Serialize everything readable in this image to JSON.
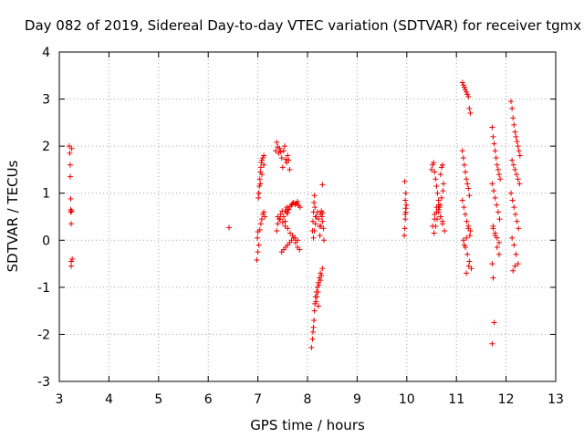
{
  "chart_data": {
    "type": "scatter",
    "title": "Day 082 of 2019, Sidereal Day-to-day VTEC variation (SDTVAR) for receiver tgmx",
    "xlabel": "GPS time / hours",
    "ylabel": "SDTVAR / TECUs",
    "xlim": [
      3,
      13
    ],
    "ylim": [
      -3,
      4
    ],
    "xticks": [
      "3",
      "4",
      "5",
      "6",
      "7",
      "8",
      "9",
      "10",
      "11",
      "12",
      "13"
    ],
    "yticks": [
      "-3",
      "-2",
      "-1",
      "0",
      "1",
      "2",
      "3",
      "4"
    ],
    "grid": true,
    "marker": "+",
    "color": "#ee0000",
    "series": [
      {
        "name": "SDTVAR",
        "x": [
          3.2,
          3.21,
          3.22,
          3.22,
          3.23,
          3.23,
          3.23,
          3.24,
          3.24,
          3.24,
          3.25,
          3.25,
          3.26,
          6.42,
          6.98,
          6.99,
          7.0,
          7.01,
          7.02,
          7.03,
          7.04,
          7.05,
          7.06,
          7.07,
          7.08,
          7.1,
          7.12,
          7.0,
          7.02,
          7.04,
          7.06,
          7.08,
          7.1,
          7.12,
          7.14,
          7.02,
          7.05,
          7.08,
          7.12,
          7.36,
          7.38,
          7.4,
          7.42,
          7.44,
          7.46,
          7.48,
          7.5,
          7.52,
          7.54,
          7.56,
          7.58,
          7.6,
          7.62,
          7.64,
          7.38,
          7.4,
          7.43,
          7.46,
          7.49,
          7.52,
          7.55,
          7.58,
          7.61,
          7.55,
          7.58,
          7.6,
          7.62,
          7.65,
          7.68,
          7.7,
          7.72,
          7.75,
          7.78,
          7.8,
          7.82,
          7.85,
          7.48,
          7.52,
          7.56,
          7.6,
          7.64,
          7.68,
          7.72,
          7.76,
          7.8,
          7.84,
          7.4,
          7.45,
          7.5,
          7.55,
          7.6,
          7.65,
          7.7,
          7.75,
          7.8,
          8.08,
          8.1,
          8.11,
          8.12,
          8.13,
          8.14,
          8.15,
          8.16,
          8.18,
          8.2,
          8.22,
          8.24,
          8.26,
          8.28,
          8.3,
          8.12,
          8.14,
          8.16,
          8.18,
          8.2,
          8.22,
          8.24,
          8.26,
          8.28,
          8.3,
          8.32,
          8.1,
          8.11,
          8.12,
          8.13,
          8.14,
          8.15,
          8.16,
          8.17,
          8.19,
          8.21,
          8.23,
          8.25,
          8.27,
          8.29,
          8.31,
          8.22,
          8.26,
          8.3,
          8.33,
          9.95,
          9.96,
          9.97,
          9.98,
          9.99,
          9.97,
          9.98,
          9.96,
          9.97,
          9.98,
          10.5,
          10.52,
          10.54,
          10.56,
          10.58,
          10.6,
          10.62,
          10.64,
          10.66,
          10.68,
          10.7,
          10.72,
          10.74,
          10.55,
          10.58,
          10.61,
          10.64,
          10.67,
          10.7,
          10.73,
          10.52,
          10.56,
          10.6,
          10.64,
          10.68,
          10.72,
          10.76,
          10.56,
          10.6,
          10.64,
          10.68,
          10.72,
          11.12,
          11.14,
          11.16,
          11.18,
          11.2,
          11.22,
          11.24,
          11.26,
          11.28,
          11.12,
          11.14,
          11.16,
          11.18,
          11.2,
          11.22,
          11.24,
          11.26,
          11.12,
          11.15,
          11.18,
          11.21,
          11.24,
          11.27,
          11.14,
          11.18,
          11.22,
          11.26,
          11.3,
          11.16,
          11.2,
          11.24,
          11.28,
          11.2,
          11.25,
          11.72,
          11.74,
          11.76,
          11.78,
          11.8,
          11.82,
          11.84,
          11.86,
          11.88,
          11.72,
          11.75,
          11.78,
          11.81,
          11.84,
          11.87,
          11.74,
          11.78,
          11.82,
          11.86,
          11.72,
          11.74,
          11.76,
          11.72,
          11.74,
          11.78,
          11.82,
          11.86,
          12.1,
          12.12,
          12.14,
          12.16,
          12.18,
          12.2,
          12.22,
          12.24,
          12.26,
          12.28,
          12.12,
          12.15,
          12.18,
          12.21,
          12.24,
          12.27,
          12.1,
          12.13,
          12.16,
          12.19,
          12.22,
          12.25,
          12.12,
          12.16,
          12.2,
          12.24,
          12.14,
          12.18
        ],
        "y": [
          2.0,
          1.85,
          1.6,
          1.35,
          0.88,
          0.65,
          0.6,
          0.35,
          -0.45,
          -0.55,
          1.95,
          0.62,
          -0.4,
          0.27,
          -0.42,
          0.05,
          0.18,
          0.9,
          1.0,
          1.15,
          1.3,
          1.45,
          1.55,
          1.65,
          1.7,
          1.75,
          1.8,
          -0.25,
          -0.1,
          0.22,
          0.35,
          0.45,
          0.55,
          0.6,
          0.5,
          1.0,
          1.2,
          1.4,
          1.6,
          1.9,
          2.08,
          1.98,
          1.85,
          1.95,
          1.88,
          1.75,
          1.55,
          1.9,
          2.0,
          1.72,
          1.65,
          1.8,
          1.7,
          1.5,
          0.2,
          0.35,
          0.45,
          0.55,
          0.62,
          0.5,
          0.4,
          0.58,
          0.65,
          0.62,
          0.7,
          0.58,
          0.66,
          0.72,
          0.75,
          0.78,
          0.8,
          0.76,
          0.78,
          0.82,
          0.74,
          0.7,
          -0.25,
          -0.2,
          -0.15,
          -0.1,
          -0.05,
          0.0,
          0.05,
          -0.05,
          -0.15,
          -0.2,
          0.5,
          0.45,
          0.38,
          0.3,
          0.25,
          0.15,
          0.1,
          0.05,
          0.0,
          -2.28,
          -2.1,
          -1.95,
          -1.85,
          -1.7,
          -1.5,
          -1.35,
          -1.2,
          -1.1,
          -1.0,
          -0.9,
          -0.8,
          -0.85,
          -0.75,
          1.18,
          0.05,
          0.2,
          0.35,
          0.5,
          0.6,
          0.45,
          0.3,
          0.55,
          0.62,
          0.4,
          0.25,
          0.2,
          0.4,
          0.6,
          0.8,
          0.95,
          0.7,
          0.5,
          -1.3,
          -1.2,
          -1.1,
          -0.95,
          0.1,
          0.3,
          0.5,
          0.58,
          -1.4,
          -0.7,
          -0.6,
          0.0,
          0.1,
          0.25,
          0.45,
          0.6,
          0.75,
          0.85,
          1.0,
          1.25,
          0.55,
          0.68,
          1.5,
          1.6,
          1.65,
          1.45,
          1.3,
          1.15,
          1.0,
          0.85,
          0.7,
          1.4,
          1.55,
          1.6,
          1.2,
          0.15,
          0.3,
          0.45,
          0.6,
          0.75,
          0.9,
          1.05,
          0.3,
          0.45,
          0.6,
          0.75,
          0.5,
          0.35,
          0.2,
          0.55,
          0.7,
          0.65,
          0.5,
          0.4,
          3.35,
          3.3,
          3.25,
          3.2,
          3.15,
          3.1,
          3.05,
          2.8,
          2.7,
          1.9,
          1.75,
          1.6,
          1.45,
          1.3,
          1.2,
          1.1,
          0.95,
          0.85,
          0.7,
          0.55,
          0.4,
          0.25,
          0.1,
          0.0,
          -0.15,
          -0.3,
          -0.45,
          -0.6,
          -0.1,
          0.05,
          0.3,
          0.2,
          -0.7,
          -0.55,
          2.4,
          2.2,
          2.05,
          1.9,
          1.75,
          1.6,
          1.5,
          1.4,
          1.3,
          1.2,
          1.05,
          0.9,
          0.75,
          0.6,
          0.45,
          0.3,
          0.15,
          0.05,
          -0.05,
          -0.5,
          -0.8,
          -1.75,
          -2.2,
          0.25,
          0.1,
          -0.15,
          -0.3,
          2.95,
          2.8,
          2.6,
          2.45,
          2.3,
          2.2,
          2.1,
          2.0,
          1.9,
          1.8,
          1.7,
          1.6,
          1.5,
          1.4,
          1.3,
          1.2,
          1.0,
          0.85,
          0.7,
          0.55,
          0.4,
          0.25,
          0.05,
          -0.1,
          -0.3,
          -0.5,
          -0.65,
          -0.55
        ]
      }
    ]
  }
}
